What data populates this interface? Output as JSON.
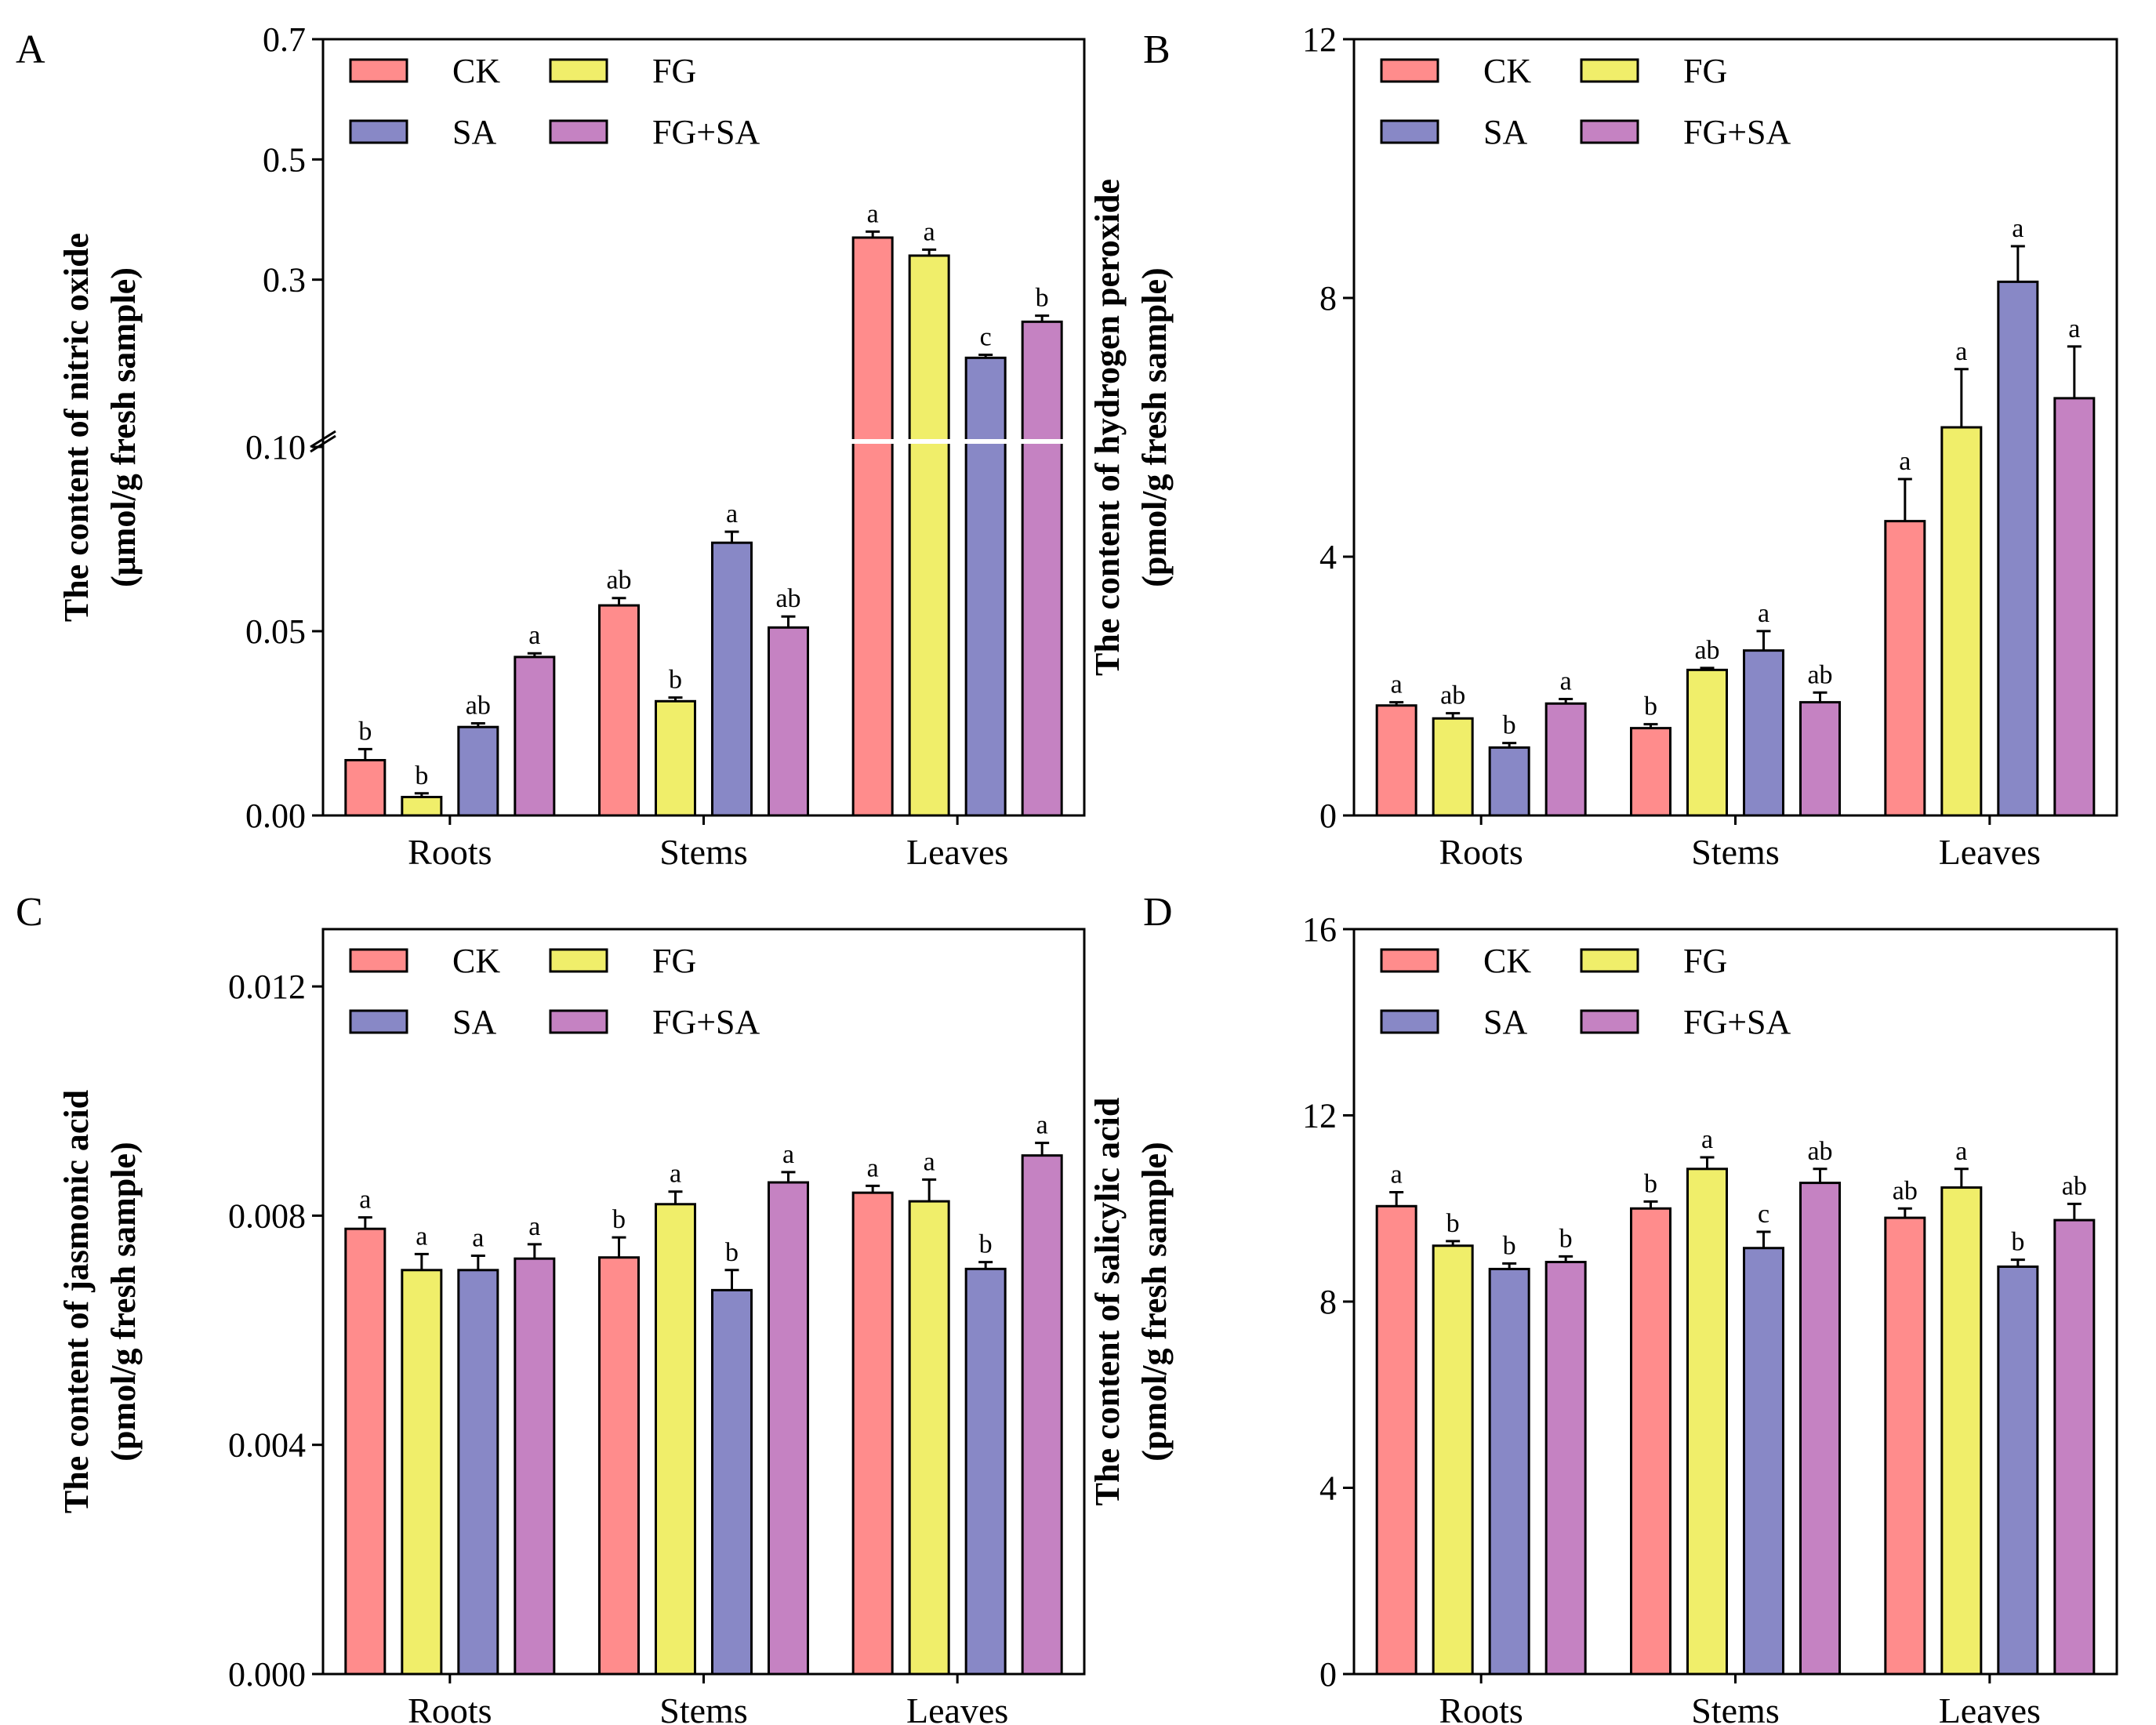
{
  "colors": {
    "CK": "#FF8C8C",
    "FG": "#F0EE6A",
    "SA": "#8888C6",
    "FG+SA": "#C582C2"
  },
  "chart_data": [
    {
      "panel": "A",
      "type": "bar",
      "ylabel_line1": "The content of nitric oxide",
      "ylabel_line2": "(μmol/g fresh sample)",
      "axis_break": {
        "lower_range": [
          0,
          0.1
        ],
        "upper_range": [
          0.1,
          0.7
        ]
      },
      "yticks_lower": [
        "0.00",
        "0.05",
        "0.10"
      ],
      "yticks_upper": [
        "0.3",
        "0.5",
        "0.7"
      ],
      "categories": [
        "Roots",
        "Stems",
        "Leaves"
      ],
      "legend": [
        "CK",
        "FG",
        "SA",
        "FG+SA"
      ],
      "series": [
        {
          "name": "CK",
          "values": [
            0.015,
            0.057,
            0.37
          ],
          "errors": [
            0.003,
            0.002,
            0.01
          ],
          "letters": [
            "b",
            "ab",
            "a"
          ]
        },
        {
          "name": "FG",
          "values": [
            0.005,
            0.031,
            0.34
          ],
          "errors": [
            0.001,
            0.001,
            0.01
          ],
          "letters": [
            "b",
            "b",
            "a"
          ]
        },
        {
          "name": "SA",
          "values": [
            0.024,
            0.074,
            0.17
          ],
          "errors": [
            0.001,
            0.003,
            0.005
          ],
          "letters": [
            "ab",
            "a",
            "c"
          ]
        },
        {
          "name": "FG+SA",
          "values": [
            0.043,
            0.051,
            0.23
          ],
          "errors": [
            0.001,
            0.003,
            0.01
          ],
          "letters": [
            "a",
            "ab",
            "b"
          ]
        }
      ]
    },
    {
      "panel": "B",
      "type": "bar",
      "ylabel_line1": "The content of hydrogen peroxide",
      "ylabel_line2": "(pmol/g fresh sample)",
      "ylim": [
        0,
        12
      ],
      "yticks": [
        "0",
        "4",
        "8",
        "12"
      ],
      "ytick_values": [
        0,
        4,
        8,
        12
      ],
      "categories": [
        "Roots",
        "Stems",
        "Leaves"
      ],
      "legend": [
        "CK",
        "FG",
        "SA",
        "FG+SA"
      ],
      "series": [
        {
          "name": "CK",
          "values": [
            1.7,
            1.35,
            4.55
          ],
          "errors": [
            0.05,
            0.06,
            0.65
          ],
          "letters": [
            "a",
            "b",
            "a"
          ]
        },
        {
          "name": "FG",
          "values": [
            1.5,
            2.25,
            6.0
          ],
          "errors": [
            0.08,
            0.03,
            0.9
          ],
          "letters": [
            "ab",
            "ab",
            "a"
          ]
        },
        {
          "name": "SA",
          "values": [
            1.05,
            2.55,
            8.25
          ],
          "errors": [
            0.07,
            0.3,
            0.55
          ],
          "letters": [
            "b",
            "a",
            "a"
          ]
        },
        {
          "name": "FG+SA",
          "values": [
            1.73,
            1.75,
            6.45
          ],
          "errors": [
            0.07,
            0.15,
            0.8
          ],
          "letters": [
            "a",
            "ab",
            "a"
          ]
        }
      ]
    },
    {
      "panel": "C",
      "type": "bar",
      "ylabel_line1": "The content of jasmonic acid",
      "ylabel_line2": "(pmol/g fresh sample)",
      "ylim": [
        0,
        0.013
      ],
      "yticks": [
        "0.000",
        "0.004",
        "0.008",
        "0.012"
      ],
      "ytick_values": [
        0,
        0.004,
        0.008,
        0.012
      ],
      "categories": [
        "Roots",
        "Stems",
        "Leaves"
      ],
      "legend": [
        "CK",
        "FG",
        "SA",
        "FG+SA"
      ],
      "series": [
        {
          "name": "CK",
          "values": [
            0.00777,
            0.00727,
            0.0084
          ],
          "errors": [
            0.0002,
            0.00035,
            0.00012
          ],
          "letters": [
            "a",
            "b",
            "a"
          ]
        },
        {
          "name": "FG",
          "values": [
            0.00705,
            0.0082,
            0.00825
          ],
          "errors": [
            0.00028,
            0.00022,
            0.00038
          ],
          "letters": [
            "a",
            "a",
            "a"
          ]
        },
        {
          "name": "SA",
          "values": [
            0.00705,
            0.0067,
            0.00707
          ],
          "errors": [
            0.00025,
            0.00035,
            0.00012
          ],
          "letters": [
            "a",
            "b",
            "b"
          ]
        },
        {
          "name": "FG+SA",
          "values": [
            0.00725,
            0.00858,
            0.00905
          ],
          "errors": [
            0.00025,
            0.00018,
            0.00022
          ],
          "letters": [
            "a",
            "a",
            "a"
          ]
        }
      ]
    },
    {
      "panel": "D",
      "type": "bar",
      "ylabel_line1": "The content of salicylic acid",
      "ylabel_line2": "(pmol/g fresh sample)",
      "ylim": [
        0,
        16
      ],
      "yticks": [
        "0",
        "4",
        "8",
        "12",
        "16"
      ],
      "ytick_values": [
        0,
        4,
        8,
        12,
        16
      ],
      "categories": [
        "Roots",
        "Stems",
        "Leaves"
      ],
      "legend": [
        "CK",
        "FG",
        "SA",
        "FG+SA"
      ],
      "series": [
        {
          "name": "CK",
          "values": [
            10.05,
            10.0,
            9.8
          ],
          "errors": [
            0.3,
            0.15,
            0.2
          ],
          "letters": [
            "a",
            "b",
            "ab"
          ]
        },
        {
          "name": "FG",
          "values": [
            9.2,
            10.85,
            10.45
          ],
          "errors": [
            0.1,
            0.25,
            0.4
          ],
          "letters": [
            "b",
            "a",
            "a"
          ]
        },
        {
          "name": "SA",
          "values": [
            8.7,
            9.15,
            8.75
          ],
          "errors": [
            0.12,
            0.35,
            0.15
          ],
          "letters": [
            "b",
            "c",
            "b"
          ]
        },
        {
          "name": "FG+SA",
          "values": [
            8.85,
            10.55,
            9.75
          ],
          "errors": [
            0.12,
            0.3,
            0.35
          ],
          "letters": [
            "b",
            "ab",
            "ab"
          ]
        }
      ]
    }
  ]
}
